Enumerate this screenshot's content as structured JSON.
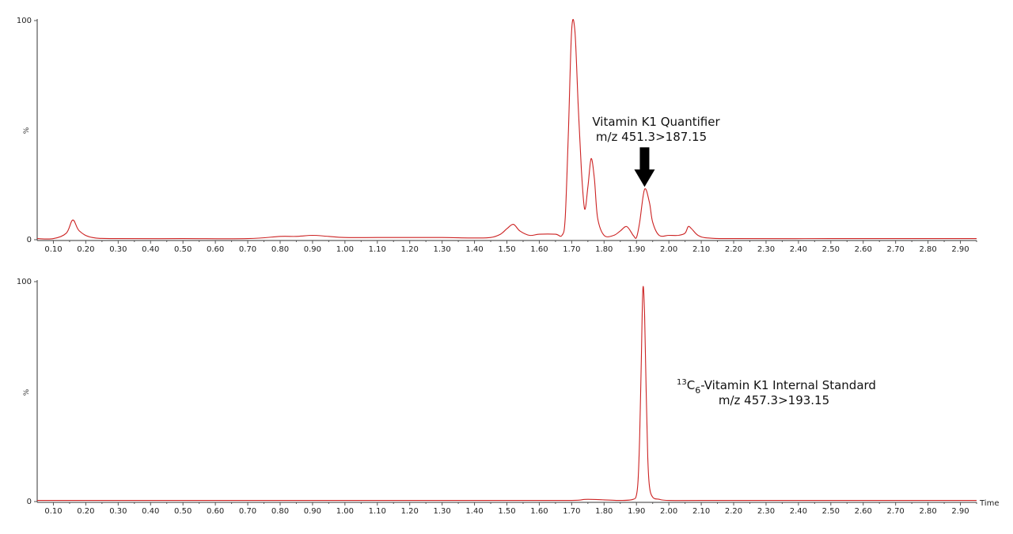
{
  "chart_data": [
    {
      "type": "line",
      "xlabel": "",
      "ylabel": "%",
      "xlim": [
        0.05,
        2.95
      ],
      "ylim": [
        0,
        100
      ],
      "y_ticks": [
        0,
        100
      ],
      "x_ticks": [
        "0.10",
        "0.20",
        "0.30",
        "0.40",
        "0.50",
        "0.60",
        "0.70",
        "0.80",
        "0.90",
        "1.00",
        "1.10",
        "1.20",
        "1.30",
        "1.40",
        "1.50",
        "1.60",
        "1.70",
        "1.80",
        "1.90",
        "2.00",
        "2.10",
        "2.20",
        "2.30",
        "2.40",
        "2.50",
        "2.60",
        "2.70",
        "2.80",
        "2.90"
      ],
      "color": "#cc2222",
      "annotation": {
        "line1": "Vitamin K1 Quantifier",
        "line2": "m/z 451.3>187.15",
        "arrow_at_x": 1.925
      },
      "series": [
        {
          "x": [
            0.05,
            0.1,
            0.14,
            0.16,
            0.18,
            0.22,
            0.3,
            0.5,
            0.7,
            0.8,
            0.85,
            0.9,
            0.95,
            1.0,
            1.1,
            1.2,
            1.3,
            1.4,
            1.45,
            1.48,
            1.5,
            1.52,
            1.54,
            1.57,
            1.6,
            1.65,
            1.67,
            1.68,
            1.69,
            1.7,
            1.71,
            1.72,
            1.73,
            1.74,
            1.75,
            1.76,
            1.77,
            1.78,
            1.8,
            1.83,
            1.85,
            1.87,
            1.89,
            1.9,
            1.91,
            1.925,
            1.94,
            1.95,
            1.97,
            2.0,
            2.03,
            2.05,
            2.06,
            2.07,
            2.09,
            2.12,
            2.2,
            2.5,
            2.8,
            2.95
          ],
          "y": [
            0.5,
            0.5,
            3,
            9,
            4,
            1,
            0.5,
            0.5,
            0.5,
            1.5,
            1.5,
            2,
            1.5,
            1,
            1,
            1,
            1,
            0.8,
            1,
            2.5,
            5,
            7,
            4,
            2,
            2.5,
            2.5,
            2,
            10,
            50,
            96,
            95,
            62,
            32,
            14,
            24,
            37,
            28,
            10,
            2,
            2,
            4,
            6,
            2,
            1,
            8,
            23,
            17,
            8,
            2,
            2,
            2,
            3,
            6,
            5,
            2,
            0.8,
            0.5,
            0.5,
            0.5,
            0.5
          ]
        }
      ]
    },
    {
      "type": "line",
      "xlabel": "Time",
      "ylabel": "%",
      "xlim": [
        0.05,
        2.95
      ],
      "ylim": [
        0,
        100
      ],
      "y_ticks": [
        0,
        100
      ],
      "x_ticks": [
        "0.10",
        "0.20",
        "0.30",
        "0.40",
        "0.50",
        "0.60",
        "0.70",
        "0.80",
        "0.90",
        "1.00",
        "1.10",
        "1.20",
        "1.30",
        "1.40",
        "1.50",
        "1.60",
        "1.70",
        "1.80",
        "1.90",
        "2.00",
        "2.10",
        "2.20",
        "2.30",
        "2.40",
        "2.50",
        "2.60",
        "2.70",
        "2.80",
        "2.90"
      ],
      "color": "#cc2222",
      "annotation": {
        "superscript": "13",
        "base": "C",
        "subscript": "6",
        "line1": "-Vitamin K1 Internal Standard",
        "line2": "m/z 457.3>193.15"
      },
      "series": [
        {
          "x": [
            0.05,
            0.5,
            1.0,
            1.5,
            1.7,
            1.75,
            1.85,
            1.89,
            1.9,
            1.905,
            1.91,
            1.915,
            1.92,
            1.925,
            1.93,
            1.935,
            1.94,
            1.95,
            1.97,
            2.0,
            2.1,
            2.5,
            2.95
          ],
          "y": [
            0.5,
            0.5,
            0.5,
            0.5,
            0.5,
            1,
            0.5,
            1,
            3,
            10,
            30,
            65,
            97,
            85,
            50,
            20,
            7,
            2,
            1,
            0.5,
            0.5,
            0.5,
            0.5
          ]
        }
      ]
    }
  ]
}
